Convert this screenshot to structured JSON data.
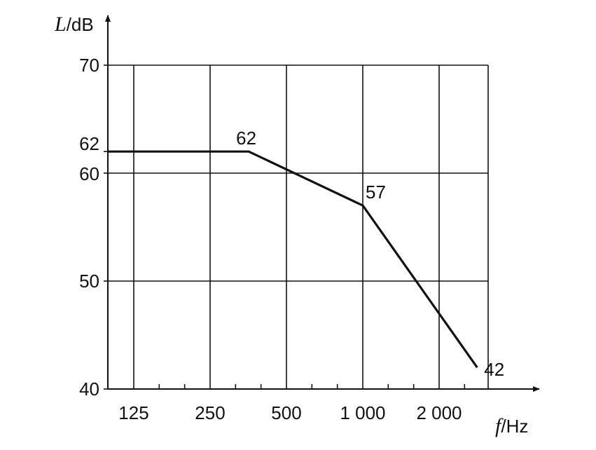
{
  "chart_data": {
    "type": "line",
    "title": "",
    "x_axis": {
      "symbol": "f",
      "unit": "/Hz"
    },
    "y_axis": {
      "symbol": "L",
      "unit": "/dB"
    },
    "x_ticks": [
      "125",
      "250",
      "500",
      "1 000",
      "2 000"
    ],
    "y_ticks": [
      "40",
      "50",
      "60",
      "62",
      "70"
    ],
    "ylim": [
      40,
      70
    ],
    "grid": true,
    "series": [
      {
        "points": [
          {
            "x": 80,
            "y": 62,
            "label": ""
          },
          {
            "x": 355,
            "y": 62,
            "label": "62"
          },
          {
            "x": 1000,
            "y": 57,
            "label": "57"
          },
          {
            "x": 2825,
            "y": 42,
            "label": "42"
          }
        ]
      }
    ],
    "colors": {
      "line": "#111111",
      "grid": "#111111"
    }
  }
}
